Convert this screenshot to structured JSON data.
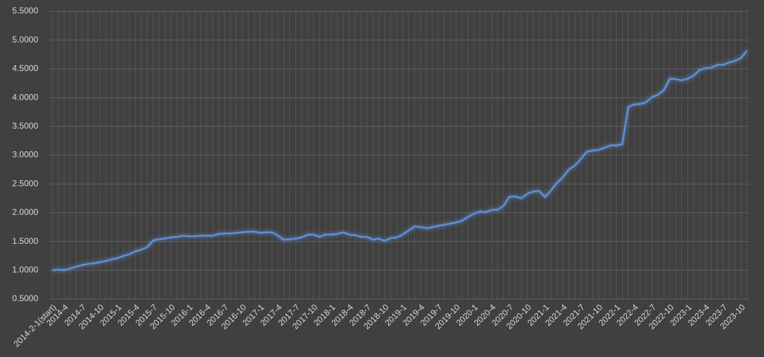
{
  "chart_data": {
    "type": "line",
    "categories": [
      "2014-2-1(start)",
      null,
      "2014-4",
      null,
      null,
      "2014-7",
      null,
      null,
      "2014-10",
      null,
      null,
      "2015-1",
      null,
      null,
      "2015-4",
      null,
      null,
      "2015-7",
      null,
      null,
      "2015-10",
      null,
      null,
      "2016-1",
      null,
      null,
      "2016-4",
      null,
      null,
      "2016-7",
      null,
      null,
      "2016-10",
      null,
      null,
      "2017-1",
      null,
      null,
      "2017-4",
      null,
      null,
      "2017-7",
      null,
      null,
      "2017-10",
      null,
      null,
      "2018-1",
      null,
      null,
      "2018-4",
      null,
      null,
      "2018-7",
      null,
      null,
      "2018-10",
      null,
      null,
      "2019-1",
      null,
      null,
      "2019-4",
      null,
      null,
      "2019-7",
      null,
      null,
      "2019-10",
      null,
      null,
      "2020-1",
      null,
      null,
      "2020-4",
      null,
      null,
      "2020-7",
      null,
      null,
      "2020-10",
      null,
      null,
      "2021-1",
      null,
      null,
      "2021-4",
      null,
      null,
      "2021-7",
      null,
      null,
      "2021-10",
      null,
      null,
      "2022-1",
      null,
      null,
      "2022-4",
      null,
      null,
      "2022-7",
      null,
      null,
      "2022-10",
      null,
      null,
      "2023-1",
      null,
      null,
      "2023-4",
      null,
      null,
      "2023-7",
      null,
      null,
      "2023-10",
      null
    ],
    "values": [
      1.0,
      1.01,
      1.0,
      1.03,
      1.06,
      1.09,
      1.11,
      1.12,
      1.14,
      1.16,
      1.19,
      1.21,
      1.25,
      1.28,
      1.33,
      1.36,
      1.4,
      1.52,
      1.54,
      1.55,
      1.57,
      1.58,
      1.6,
      1.59,
      1.59,
      1.6,
      1.6,
      1.6,
      1.63,
      1.64,
      1.64,
      1.65,
      1.66,
      1.67,
      1.67,
      1.65,
      1.66,
      1.66,
      1.6,
      1.53,
      1.54,
      1.55,
      1.57,
      1.62,
      1.62,
      1.58,
      1.62,
      1.62,
      1.63,
      1.66,
      1.62,
      1.61,
      1.58,
      1.58,
      1.53,
      1.55,
      1.51,
      1.56,
      1.57,
      1.62,
      1.69,
      1.76,
      1.75,
      1.73,
      1.75,
      1.77,
      1.79,
      1.81,
      1.83,
      1.86,
      1.93,
      1.98,
      2.02,
      2.01,
      2.05,
      2.05,
      2.12,
      2.28,
      2.28,
      2.25,
      2.33,
      2.37,
      2.38,
      2.27,
      2.39,
      2.52,
      2.62,
      2.75,
      2.82,
      2.93,
      3.06,
      3.08,
      3.09,
      3.13,
      3.17,
      3.17,
      3.19,
      3.84,
      3.88,
      3.89,
      3.92,
      4.01,
      4.05,
      4.13,
      4.33,
      4.32,
      4.3,
      4.33,
      4.38,
      4.48,
      4.51,
      4.52,
      4.57,
      4.57,
      4.61,
      4.64,
      4.69,
      4.82
    ],
    "color": "#5b8fd6",
    "ylim": [
      0.5,
      5.5
    ],
    "yticks": [
      {
        "value": 0.5,
        "label": "0.5000"
      },
      {
        "value": 1,
        "label": "1.0000"
      },
      {
        "value": 1.5,
        "label": "1.5000"
      },
      {
        "value": 2,
        "label": "2.0000"
      },
      {
        "value": 2.5,
        "label": "2.5000"
      },
      {
        "value": 3,
        "label": "3.0000"
      },
      {
        "value": 3.5,
        "label": "3.5000"
      },
      {
        "value": 4,
        "label": "4.0000"
      },
      {
        "value": 4.5,
        "label": "4.5000"
      },
      {
        "value": 5,
        "label": "5.0000"
      },
      {
        "value": 5.5,
        "label": "5.5000"
      }
    ],
    "grid": true
  }
}
